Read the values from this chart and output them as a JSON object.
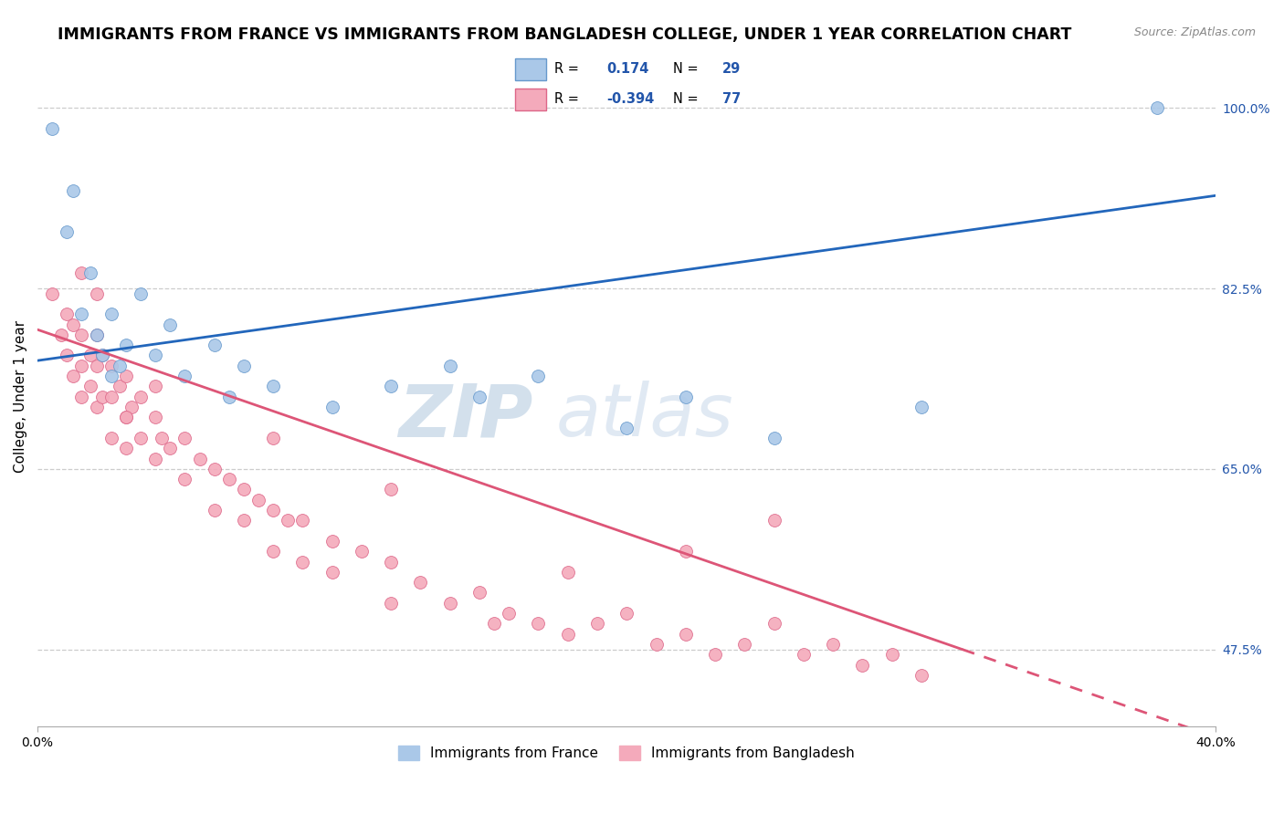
{
  "title": "IMMIGRANTS FROM FRANCE VS IMMIGRANTS FROM BANGLADESH COLLEGE, UNDER 1 YEAR CORRELATION CHART",
  "source": "Source: ZipAtlas.com",
  "ylabel": "College, Under 1 year",
  "xlim": [
    0.0,
    0.4
  ],
  "ylim": [
    0.4,
    1.04
  ],
  "ytick_right_values": [
    1.0,
    0.825,
    0.65,
    0.475
  ],
  "ytick_right_labels": [
    "100.0%",
    "82.5%",
    "65.0%",
    "47.5%"
  ],
  "france_color": "#aac8e8",
  "france_edge": "#6699cc",
  "bangladesh_color": "#f4aabb",
  "bangladesh_edge": "#dd6688",
  "france_line_color": "#2266bb",
  "bangladesh_line_color": "#dd5577",
  "watermark_zip_color": "#b8cfe0",
  "watermark_atlas_color": "#c8d8e8",
  "legend_R_color": "#2255aa",
  "legend_N_color": "#2255aa",
  "right_tick_color": "#2255aa",
  "grid_color": "#cccccc",
  "dot_size": 100,
  "title_fontsize": 12.5,
  "france_scatter_x": [
    0.005,
    0.01,
    0.012,
    0.015,
    0.018,
    0.02,
    0.022,
    0.025,
    0.025,
    0.028,
    0.03,
    0.035,
    0.04,
    0.045,
    0.05,
    0.06,
    0.065,
    0.07,
    0.08,
    0.1,
    0.12,
    0.14,
    0.15,
    0.17,
    0.2,
    0.22,
    0.25,
    0.3,
    0.38
  ],
  "france_scatter_y": [
    0.98,
    0.88,
    0.92,
    0.8,
    0.84,
    0.78,
    0.76,
    0.74,
    0.8,
    0.75,
    0.77,
    0.82,
    0.76,
    0.79,
    0.74,
    0.77,
    0.72,
    0.75,
    0.73,
    0.71,
    0.73,
    0.75,
    0.72,
    0.74,
    0.69,
    0.72,
    0.68,
    0.71,
    1.0
  ],
  "bangladesh_scatter_x": [
    0.005,
    0.008,
    0.01,
    0.01,
    0.012,
    0.012,
    0.015,
    0.015,
    0.015,
    0.018,
    0.018,
    0.02,
    0.02,
    0.02,
    0.022,
    0.022,
    0.025,
    0.025,
    0.025,
    0.028,
    0.03,
    0.03,
    0.03,
    0.032,
    0.035,
    0.035,
    0.04,
    0.04,
    0.042,
    0.045,
    0.05,
    0.05,
    0.055,
    0.06,
    0.06,
    0.065,
    0.07,
    0.07,
    0.075,
    0.08,
    0.08,
    0.085,
    0.09,
    0.09,
    0.1,
    0.1,
    0.11,
    0.12,
    0.12,
    0.13,
    0.14,
    0.15,
    0.155,
    0.16,
    0.17,
    0.18,
    0.19,
    0.2,
    0.21,
    0.22,
    0.23,
    0.24,
    0.25,
    0.26,
    0.27,
    0.28,
    0.29,
    0.3,
    0.25,
    0.18,
    0.12,
    0.08,
    0.04,
    0.02,
    0.015,
    0.03,
    0.22
  ],
  "bangladesh_scatter_y": [
    0.82,
    0.78,
    0.8,
    0.76,
    0.79,
    0.74,
    0.78,
    0.75,
    0.72,
    0.76,
    0.73,
    0.78,
    0.75,
    0.71,
    0.76,
    0.72,
    0.75,
    0.72,
    0.68,
    0.73,
    0.74,
    0.7,
    0.67,
    0.71,
    0.72,
    0.68,
    0.7,
    0.66,
    0.68,
    0.67,
    0.68,
    0.64,
    0.66,
    0.65,
    0.61,
    0.64,
    0.63,
    0.6,
    0.62,
    0.61,
    0.57,
    0.6,
    0.6,
    0.56,
    0.58,
    0.55,
    0.57,
    0.56,
    0.52,
    0.54,
    0.52,
    0.53,
    0.5,
    0.51,
    0.5,
    0.49,
    0.5,
    0.51,
    0.48,
    0.49,
    0.47,
    0.48,
    0.5,
    0.47,
    0.48,
    0.46,
    0.47,
    0.45,
    0.6,
    0.55,
    0.63,
    0.68,
    0.73,
    0.82,
    0.84,
    0.7,
    0.57
  ]
}
